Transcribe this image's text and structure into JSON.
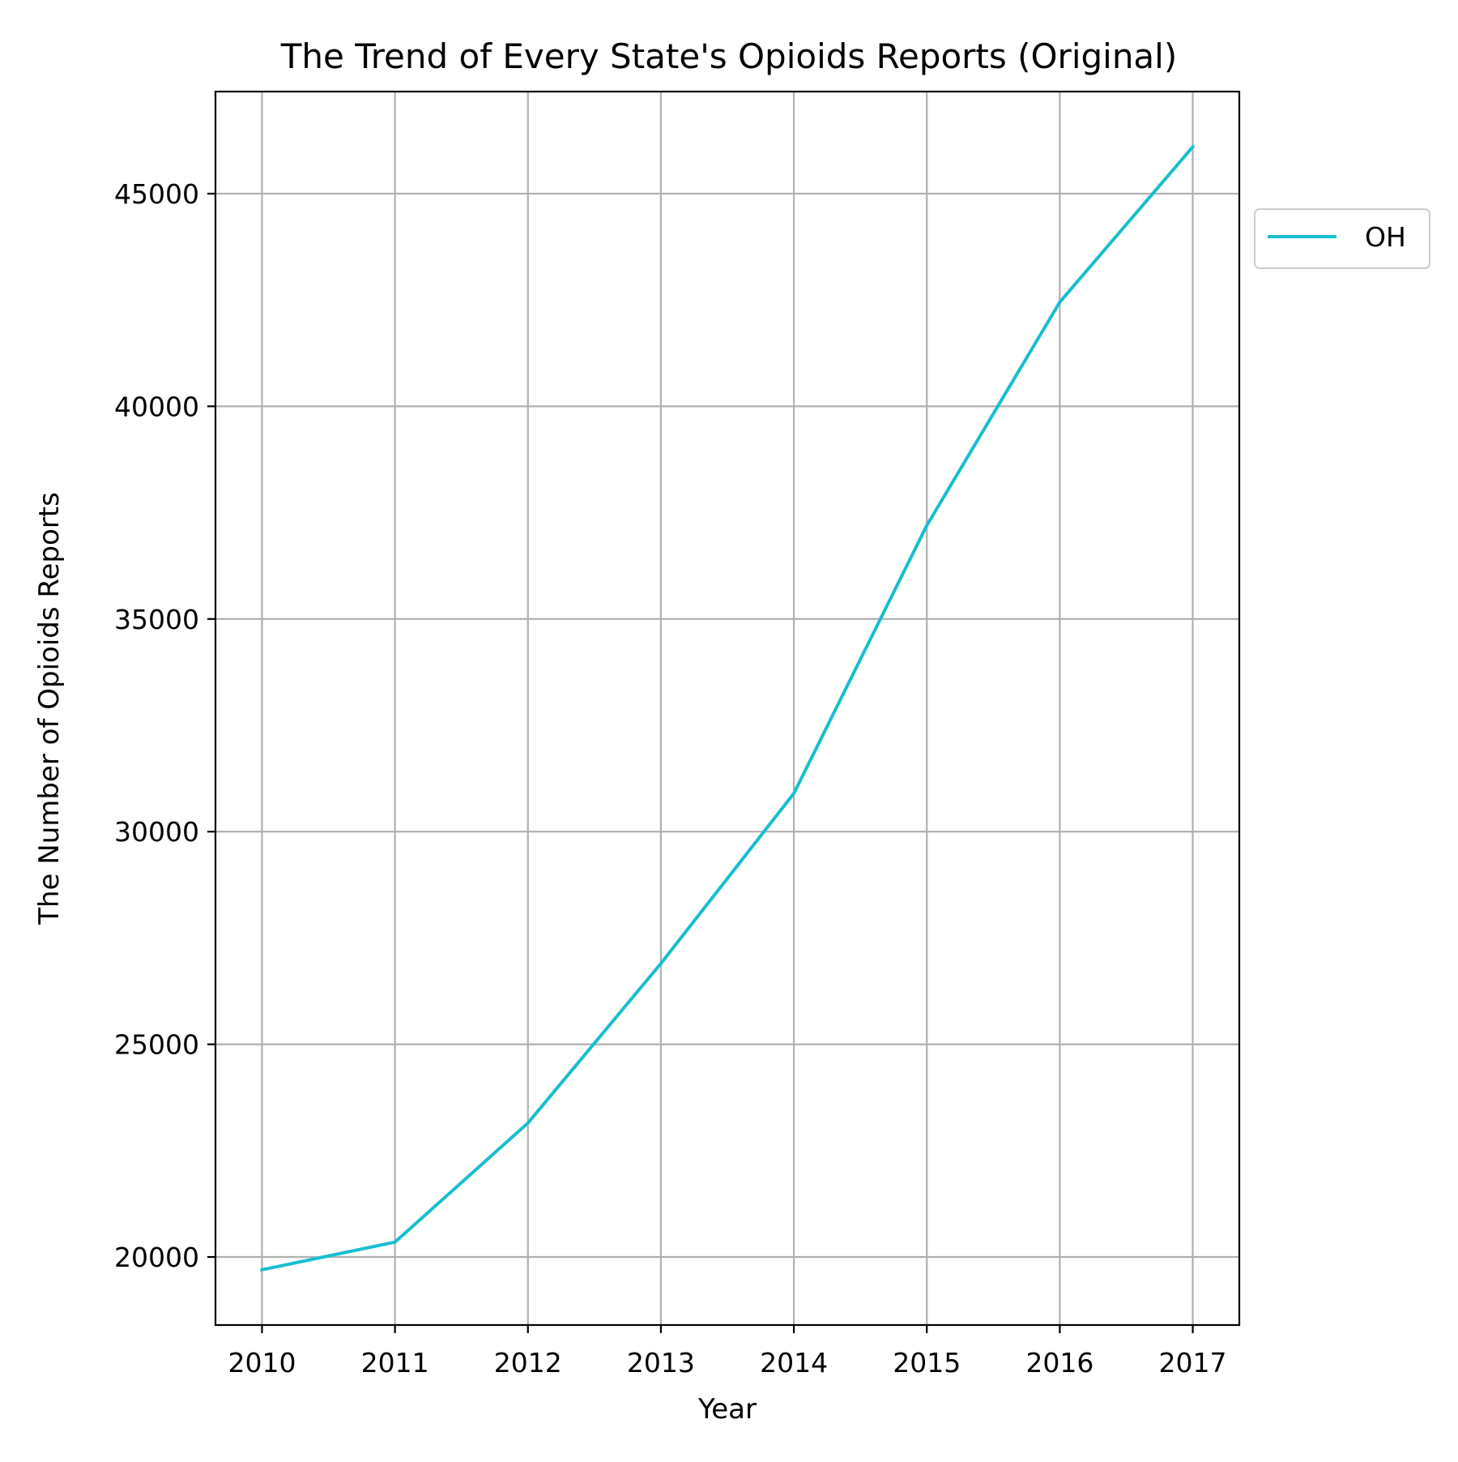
{
  "chart_data": {
    "type": "line",
    "title": "The Trend of Every State's Opioids Reports (Original)",
    "xlabel": "Year",
    "ylabel": "The Number of Opioids Reports",
    "x": [
      2010,
      2011,
      2012,
      2013,
      2014,
      2015,
      2016,
      2017
    ],
    "x_tick_labels": [
      "2010",
      "2011",
      "2012",
      "2013",
      "2014",
      "2015",
      "2016",
      "2017"
    ],
    "y_ticks": [
      20000,
      25000,
      30000,
      35000,
      40000,
      45000
    ],
    "y_tick_labels": [
      "20000",
      "25000",
      "30000",
      "35000",
      "40000",
      "45000"
    ],
    "xlim": [
      2009.65,
      2017.35
    ],
    "ylim": [
      18400,
      47400
    ],
    "grid": true,
    "legend_position": "outside-right-top",
    "series": [
      {
        "name": "OH",
        "color": "#17becf",
        "values": [
          19700,
          20350,
          23150,
          26900,
          30900,
          37200,
          42450,
          46100
        ]
      }
    ]
  }
}
